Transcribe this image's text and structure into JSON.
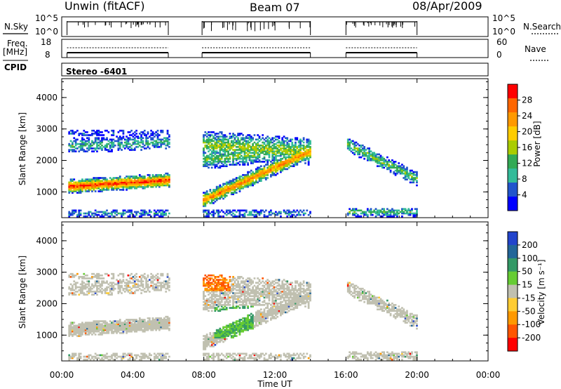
{
  "header": {
    "station": "Unwin (fitACF)",
    "beam": "Beam 07",
    "date": "08/Apr/2009"
  },
  "top_panels": {
    "nsky_label": "N.Sky",
    "nsearch_label": "N.Search",
    "noise_ticks": [
      "10^5",
      "10^0"
    ],
    "freq_label": "Freq.",
    "freq_unit": "[MHz]",
    "freq_ticks": [
      "18",
      "8"
    ],
    "nave_ticks": [
      "60",
      "0"
    ],
    "nave_label": "Nave",
    "cpid_label": "CPID",
    "cpid_value": "Stereo -6401"
  },
  "colorbars": {
    "power": {
      "label": "Power [dB]",
      "ticks": [
        "28",
        "24",
        "20",
        "16",
        "12",
        "8",
        "4"
      ],
      "colors": [
        "#ff0000",
        "#ff6600",
        "#ff9900",
        "#ffcc00",
        "#aacc00",
        "#33aa55",
        "#33bb99",
        "#2255cc",
        "#0000ff"
      ]
    },
    "velocity": {
      "label": "Velocity [m s⁻¹]",
      "ticks": [
        "200",
        "100",
        "50",
        "15",
        "-15",
        "-50",
        "-100",
        "-200"
      ],
      "colors": [
        "#2244cc",
        "#226699",
        "#339966",
        "#66cc33",
        "#c0c0b0",
        "#ffcc33",
        "#ff9900",
        "#ff5500",
        "#ff0000"
      ]
    }
  },
  "chart_data": [
    {
      "type": "heatmap",
      "name": "Power",
      "xlabel": "Time UT",
      "ylabel": "Slant Range [km]",
      "x_ticks": [
        "00:00",
        "04:00",
        "08:00",
        "12:00",
        "16:00",
        "20:00",
        "00:00"
      ],
      "xlim_hours": [
        0,
        24
      ],
      "y_ticks": [
        1000,
        2000,
        3000,
        4000
      ],
      "ylim_km": [
        180,
        4600
      ],
      "data_intervals_hours": [
        [
          0.3,
          6.0
        ],
        [
          7.9,
          14.0
        ],
        [
          16.0,
          20.0
        ]
      ],
      "colorbar_ticks_db": [
        4,
        8,
        12,
        16,
        20,
        24,
        28
      ]
    },
    {
      "type": "heatmap",
      "name": "Velocity",
      "xlabel": "Time UT",
      "ylabel": "Slant Range [km]",
      "x_ticks": [
        "00:00",
        "04:00",
        "08:00",
        "12:00",
        "16:00",
        "20:00",
        "00:00"
      ],
      "xlim_hours": [
        0,
        24
      ],
      "y_ticks": [
        1000,
        2000,
        3000,
        4000
      ],
      "ylim_km": [
        180,
        4600
      ],
      "data_intervals_hours": [
        [
          0.3,
          6.0
        ],
        [
          7.9,
          14.0
        ],
        [
          16.0,
          20.0
        ]
      ],
      "colorbar_ticks_ms": [
        -200,
        -100,
        -50,
        -15,
        15,
        50,
        100,
        200
      ]
    }
  ]
}
